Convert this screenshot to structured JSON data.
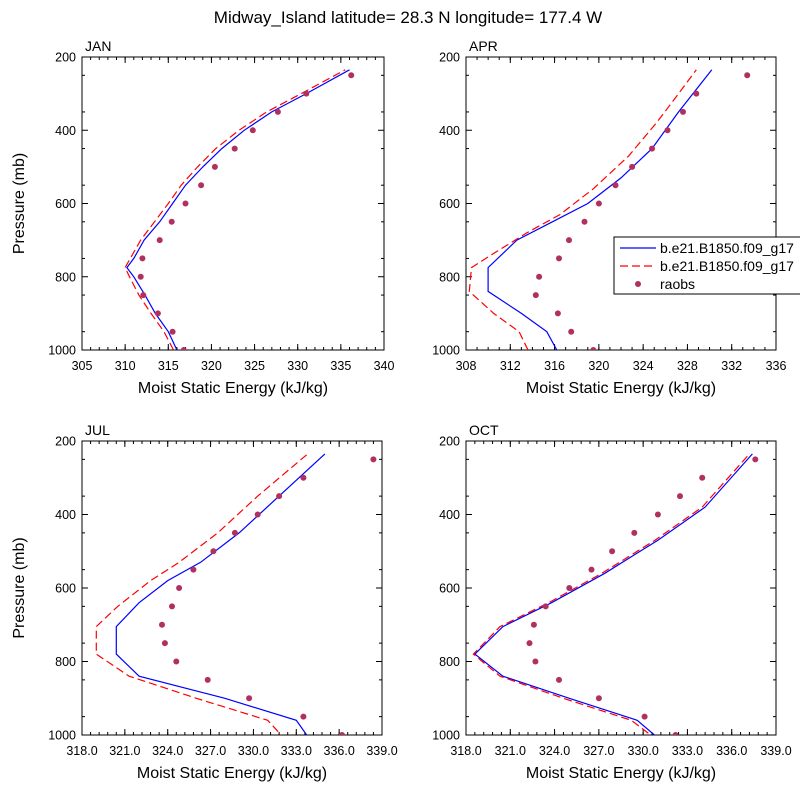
{
  "title": "Midway_Island  latitude= 28.3 N longitude= 177.4 W",
  "legend": {
    "placement": "right of APR panel, clipped at image edge",
    "entries": [
      {
        "label": "b.e21.B1850.f09_g17",
        "style": "solid",
        "color": "#0000ff"
      },
      {
        "label": "b.e21.B1850.f09_g17",
        "style": "dashed",
        "color": "#ff0000"
      },
      {
        "label": "raobs",
        "style": "dot",
        "color": "#b03060"
      }
    ]
  },
  "colors": {
    "series_solid": "#0000ff",
    "series_dashed": "#ff0000",
    "raobs": "#b03060"
  },
  "chart_data": [
    {
      "type": "line",
      "panel_label": "JAN",
      "xlabel": "Moist Static Energy (kJ/kg)",
      "ylabel": "Pressure (mb)",
      "xlim": [
        305,
        340
      ],
      "ylim": [
        1000,
        200
      ],
      "y_reversed": true,
      "x_ticks": [
        "305",
        "310",
        "315",
        "320",
        "325",
        "330",
        "335",
        "340"
      ],
      "y_ticks": [
        "200",
        "400",
        "600",
        "800",
        "1000"
      ],
      "series": [
        {
          "style": "solid",
          "points": [
            [
              316.0,
              1000
            ],
            [
              315.0,
              950
            ],
            [
              313.5,
              900
            ],
            [
              312.3,
              850
            ],
            [
              311.0,
              800
            ],
            [
              310.2,
              775
            ],
            [
              311.0,
              750
            ],
            [
              312.2,
              700
            ],
            [
              314.0,
              650
            ],
            [
              315.5,
              600
            ],
            [
              317.0,
              550
            ],
            [
              319.0,
              500
            ],
            [
              321.2,
              450
            ],
            [
              323.8,
              400
            ],
            [
              327.0,
              350
            ],
            [
              331.0,
              300
            ],
            [
              336.0,
              235
            ]
          ]
        },
        {
          "style": "dashed",
          "points": [
            [
              315.6,
              1000
            ],
            [
              314.5,
              950
            ],
            [
              313.0,
              900
            ],
            [
              311.6,
              850
            ],
            [
              310.5,
              800
            ],
            [
              310.0,
              775
            ],
            [
              310.6,
              750
            ],
            [
              311.8,
              700
            ],
            [
              313.4,
              650
            ],
            [
              315.0,
              600
            ],
            [
              316.5,
              550
            ],
            [
              318.4,
              500
            ],
            [
              320.5,
              450
            ],
            [
              323.2,
              400
            ],
            [
              326.4,
              350
            ],
            [
              330.4,
              300
            ],
            [
              335.5,
              235
            ]
          ]
        },
        {
          "style": "dot",
          "points": [
            [
              316.8,
              1000
            ],
            [
              315.5,
              950
            ],
            [
              313.8,
              900
            ],
            [
              312.1,
              850
            ],
            [
              311.8,
              800
            ],
            [
              312.0,
              750
            ],
            [
              314.0,
              700
            ],
            [
              315.4,
              650
            ],
            [
              317.0,
              600
            ],
            [
              318.8,
              550
            ],
            [
              320.4,
              500
            ],
            [
              322.7,
              450
            ],
            [
              324.8,
              400
            ],
            [
              327.7,
              350
            ],
            [
              331.0,
              300
            ],
            [
              336.2,
              250
            ]
          ]
        }
      ]
    },
    {
      "type": "line",
      "panel_label": "APR",
      "xlabel": "Moist Static Energy (kJ/kg)",
      "ylabel": "",
      "xlim": [
        308,
        336
      ],
      "ylim": [
        1000,
        200
      ],
      "y_reversed": true,
      "x_ticks": [
        "308",
        "312",
        "316",
        "320",
        "324",
        "328",
        "332",
        "336"
      ],
      "y_ticks": [
        "200",
        "400",
        "600",
        "800",
        "1000"
      ],
      "series": [
        {
          "style": "solid",
          "points": [
            [
              316.2,
              1000
            ],
            [
              315.3,
              950
            ],
            [
              313.0,
              900
            ],
            [
              310.0,
              840
            ],
            [
              310.0,
              775
            ],
            [
              312.6,
              700
            ],
            [
              315.8,
              650
            ],
            [
              319.0,
              600
            ],
            [
              322.0,
              530
            ],
            [
              324.8,
              450
            ],
            [
              327.2,
              350
            ],
            [
              330.2,
              235
            ]
          ]
        },
        {
          "style": "dashed",
          "points": [
            [
              313.6,
              1000
            ],
            [
              312.8,
              950
            ],
            [
              310.5,
              900
            ],
            [
              308.3,
              840
            ],
            [
              308.5,
              775
            ],
            [
              310.3,
              740
            ],
            [
              313.5,
              680
            ],
            [
              316.5,
              630
            ],
            [
              319.5,
              560
            ],
            [
              322.7,
              470
            ],
            [
              325.2,
              380
            ],
            [
              327.2,
              300
            ],
            [
              328.8,
              235
            ]
          ]
        },
        {
          "style": "dot",
          "points": [
            [
              319.5,
              1000
            ],
            [
              317.5,
              950
            ],
            [
              316.3,
              900
            ],
            [
              314.3,
              850
            ],
            [
              314.6,
              800
            ],
            [
              316.4,
              750
            ],
            [
              317.3,
              700
            ],
            [
              318.7,
              650
            ],
            [
              320.0,
              600
            ],
            [
              321.5,
              550
            ],
            [
              323.0,
              500
            ],
            [
              324.8,
              450
            ],
            [
              326.2,
              400
            ],
            [
              327.6,
              350
            ],
            [
              328.8,
              300
            ],
            [
              333.4,
              250
            ]
          ]
        }
      ]
    },
    {
      "type": "line",
      "panel_label": "JUL",
      "xlabel": "Moist Static Energy (kJ/kg)",
      "ylabel": "Pressure (mb)",
      "xlim": [
        318.0,
        339.0
      ],
      "ylim": [
        1000,
        200
      ],
      "y_reversed": true,
      "x_ticks": [
        "318.0",
        "321.0",
        "324.0",
        "327.0",
        "330.0",
        "333.0",
        "336.0",
        "339.0"
      ],
      "y_ticks": [
        "200",
        "400",
        "600",
        "800",
        "1000"
      ],
      "series": [
        {
          "style": "solid",
          "points": [
            [
              334.0,
              1015
            ],
            [
              333.0,
              960
            ],
            [
              328.0,
              900
            ],
            [
              322.0,
              840
            ],
            [
              320.4,
              780
            ],
            [
              320.4,
              705
            ],
            [
              322.0,
              640
            ],
            [
              324.0,
              580
            ],
            [
              326.3,
              530
            ],
            [
              329.0,
              450
            ],
            [
              331.8,
              350
            ],
            [
              335.0,
              235
            ]
          ]
        },
        {
          "style": "dashed",
          "points": [
            [
              332.3,
              1015
            ],
            [
              331.0,
              960
            ],
            [
              326.0,
              900
            ],
            [
              321.3,
              840
            ],
            [
              319.0,
              780
            ],
            [
              319.0,
              705
            ],
            [
              320.5,
              650
            ],
            [
              322.8,
              580
            ],
            [
              324.8,
              530
            ],
            [
              327.5,
              450
            ],
            [
              330.3,
              350
            ],
            [
              333.8,
              235
            ]
          ]
        },
        {
          "style": "dot",
          "points": [
            [
              336.2,
              1000
            ],
            [
              333.5,
              950
            ],
            [
              329.7,
              900
            ],
            [
              326.8,
              850
            ],
            [
              324.6,
              800
            ],
            [
              323.8,
              750
            ],
            [
              323.6,
              700
            ],
            [
              324.3,
              650
            ],
            [
              324.8,
              600
            ],
            [
              325.8,
              550
            ],
            [
              327.2,
              500
            ],
            [
              328.7,
              450
            ],
            [
              330.3,
              400
            ],
            [
              331.8,
              350
            ],
            [
              333.5,
              300
            ],
            [
              338.4,
              250
            ]
          ]
        }
      ]
    },
    {
      "type": "line",
      "panel_label": "OCT",
      "xlabel": "Moist Static Energy (kJ/kg)",
      "ylabel": "",
      "xlim": [
        318.0,
        339.0
      ],
      "ylim": [
        1000,
        200
      ],
      "y_reversed": true,
      "x_ticks": [
        "318.0",
        "321.0",
        "324.0",
        "327.0",
        "330.0",
        "333.0",
        "336.0",
        "339.0"
      ],
      "y_ticks": [
        "200",
        "400",
        "600",
        "800",
        "1000"
      ],
      "series": [
        {
          "style": "solid",
          "points": [
            [
              331.2,
              1015
            ],
            [
              329.6,
              960
            ],
            [
              325.0,
              900
            ],
            [
              320.5,
              840
            ],
            [
              318.6,
              780
            ],
            [
              320.5,
              705
            ],
            [
              323.8,
              640
            ],
            [
              327.4,
              560
            ],
            [
              331.0,
              470
            ],
            [
              334.2,
              380
            ],
            [
              337.4,
              235
            ]
          ]
        },
        {
          "style": "dashed",
          "points": [
            [
              331.0,
              1015
            ],
            [
              329.2,
              960
            ],
            [
              324.6,
              900
            ],
            [
              320.3,
              840
            ],
            [
              318.5,
              780
            ],
            [
              320.3,
              705
            ],
            [
              323.6,
              640
            ],
            [
              327.2,
              560
            ],
            [
              330.8,
              470
            ],
            [
              334.0,
              380
            ],
            [
              337.2,
              235
            ]
          ]
        },
        {
          "style": "dot",
          "points": [
            [
              332.2,
              1000
            ],
            [
              330.1,
              950
            ],
            [
              327.0,
              900
            ],
            [
              324.3,
              850
            ],
            [
              322.7,
              800
            ],
            [
              322.3,
              750
            ],
            [
              322.6,
              700
            ],
            [
              323.4,
              650
            ],
            [
              325.0,
              600
            ],
            [
              326.5,
              550
            ],
            [
              327.9,
              500
            ],
            [
              329.4,
              450
            ],
            [
              331.0,
              400
            ],
            [
              332.5,
              350
            ],
            [
              334.0,
              300
            ],
            [
              337.6,
              250
            ]
          ]
        }
      ]
    }
  ]
}
